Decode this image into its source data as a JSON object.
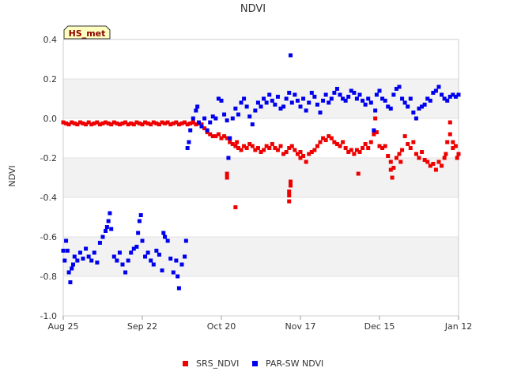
{
  "chart_data": {
    "type": "scatter",
    "title": "NDVI",
    "badge": "HS_met",
    "xlabel": "",
    "ylabel": "NDVI",
    "ylim": [
      -1.0,
      0.4
    ],
    "yticks": [
      -1.0,
      -0.8,
      -0.6,
      -0.4,
      -0.2,
      0.0,
      0.2,
      0.4
    ],
    "ytick_labels": [
      "-1.0",
      "-0.8",
      "-0.6",
      "-0.4",
      "-0.2",
      "0.0",
      "0.2",
      "0.4"
    ],
    "xlim_days": [
      0,
      140
    ],
    "xticks": [
      {
        "day": 0,
        "label": "Aug 25"
      },
      {
        "day": 28,
        "label": "Sep 22"
      },
      {
        "day": 56,
        "label": "Oct 20"
      },
      {
        "day": 84,
        "label": "Nov 17"
      },
      {
        "day": 112,
        "label": "Dec 15"
      },
      {
        "day": 140,
        "label": "Jan 12"
      }
    ],
    "grid_bands": true,
    "legend_position": "bottom-center",
    "series": [
      {
        "name": "SRS_NDVI",
        "color": "#ee0000",
        "points": [
          [
            0,
            -0.02
          ],
          [
            1,
            -0.025
          ],
          [
            2,
            -0.03
          ],
          [
            3,
            -0.02
          ],
          [
            4,
            -0.025
          ],
          [
            5,
            -0.03
          ],
          [
            6,
            -0.02
          ],
          [
            7,
            -0.025
          ],
          [
            8,
            -0.03
          ],
          [
            9,
            -0.02
          ],
          [
            10,
            -0.03
          ],
          [
            11,
            -0.025
          ],
          [
            12,
            -0.02
          ],
          [
            13,
            -0.03
          ],
          [
            14,
            -0.025
          ],
          [
            15,
            -0.02
          ],
          [
            16,
            -0.025
          ],
          [
            17,
            -0.03
          ],
          [
            18,
            -0.02
          ],
          [
            19,
            -0.025
          ],
          [
            20,
            -0.03
          ],
          [
            21,
            -0.025
          ],
          [
            22,
            -0.02
          ],
          [
            23,
            -0.03
          ],
          [
            24,
            -0.025
          ],
          [
            25,
            -0.03
          ],
          [
            26,
            -0.02
          ],
          [
            27,
            -0.025
          ],
          [
            28,
            -0.03
          ],
          [
            29,
            -0.02
          ],
          [
            30,
            -0.025
          ],
          [
            31,
            -0.03
          ],
          [
            32,
            -0.02
          ],
          [
            33,
            -0.025
          ],
          [
            34,
            -0.03
          ],
          [
            35,
            -0.02
          ],
          [
            36,
            -0.025
          ],
          [
            37,
            -0.02
          ],
          [
            38,
            -0.03
          ],
          [
            39,
            -0.025
          ],
          [
            40,
            -0.02
          ],
          [
            41,
            -0.03
          ],
          [
            42,
            -0.025
          ],
          [
            43,
            -0.02
          ],
          [
            44,
            -0.03
          ],
          [
            45,
            -0.025
          ],
          [
            46,
            -0.02
          ],
          [
            47,
            -0.03
          ],
          [
            48,
            -0.025
          ],
          [
            49,
            -0.03
          ],
          [
            50,
            -0.05
          ],
          [
            51,
            -0.07
          ],
          [
            52,
            -0.08
          ],
          [
            53,
            -0.09
          ],
          [
            54,
            -0.09
          ],
          [
            55,
            -0.08
          ],
          [
            56,
            -0.1
          ],
          [
            57,
            -0.09
          ],
          [
            58,
            -0.1
          ],
          [
            59,
            -0.12
          ],
          [
            60,
            -0.13
          ],
          [
            61,
            -0.14
          ],
          [
            61.5,
            -0.12
          ],
          [
            62,
            -0.15
          ],
          [
            63,
            -0.16
          ],
          [
            58,
            -0.28
          ],
          [
            58,
            -0.3
          ],
          [
            61,
            -0.45
          ],
          [
            64,
            -0.14
          ],
          [
            65,
            -0.15
          ],
          [
            66,
            -0.13
          ],
          [
            67,
            -0.14
          ],
          [
            68,
            -0.16
          ],
          [
            69,
            -0.15
          ],
          [
            70,
            -0.17
          ],
          [
            71,
            -0.16
          ],
          [
            72,
            -0.14
          ],
          [
            73,
            -0.15
          ],
          [
            74,
            -0.13
          ],
          [
            75,
            -0.15
          ],
          [
            76,
            -0.16
          ],
          [
            77,
            -0.14
          ],
          [
            78,
            -0.18
          ],
          [
            79,
            -0.17
          ],
          [
            80,
            -0.15
          ],
          [
            80.5,
            -0.32
          ],
          [
            80.5,
            -0.34
          ],
          [
            80,
            -0.37
          ],
          [
            80,
            -0.39
          ],
          [
            80,
            -0.42
          ],
          [
            81,
            -0.14
          ],
          [
            82,
            -0.16
          ],
          [
            83,
            -0.18
          ],
          [
            84,
            -0.17
          ],
          [
            84,
            -0.2
          ],
          [
            85,
            -0.19
          ],
          [
            86,
            -0.22
          ],
          [
            87,
            -0.18
          ],
          [
            88,
            -0.17
          ],
          [
            89,
            -0.16
          ],
          [
            90,
            -0.14
          ],
          [
            91,
            -0.12
          ],
          [
            92,
            -0.1
          ],
          [
            93,
            -0.11
          ],
          [
            94,
            -0.09
          ],
          [
            95,
            -0.1
          ],
          [
            96,
            -0.12
          ],
          [
            97,
            -0.13
          ],
          [
            98,
            -0.14
          ],
          [
            99,
            -0.12
          ],
          [
            100,
            -0.15
          ],
          [
            101,
            -0.17
          ],
          [
            102,
            -0.16
          ],
          [
            103,
            -0.18
          ],
          [
            104,
            -0.16
          ],
          [
            104.5,
            -0.28
          ],
          [
            105,
            -0.17
          ],
          [
            106,
            -0.15
          ],
          [
            107,
            -0.13
          ],
          [
            108,
            -0.15
          ],
          [
            109,
            -0.12
          ],
          [
            110,
            -0.08
          ],
          [
            110.5,
            0.0
          ],
          [
            111,
            -0.07
          ],
          [
            112,
            -0.14
          ],
          [
            113,
            -0.15
          ],
          [
            114,
            -0.14
          ],
          [
            115,
            -0.19
          ],
          [
            116,
            -0.22
          ],
          [
            116,
            -0.26
          ],
          [
            116.5,
            -0.3
          ],
          [
            117,
            -0.25
          ],
          [
            118,
            -0.2
          ],
          [
            119,
            -0.18
          ],
          [
            119.5,
            -0.22
          ],
          [
            120,
            -0.16
          ],
          [
            121,
            -0.09
          ],
          [
            122,
            -0.13
          ],
          [
            123,
            -0.15
          ],
          [
            124,
            -0.12
          ],
          [
            125,
            -0.18
          ],
          [
            126,
            -0.2
          ],
          [
            127,
            -0.17
          ],
          [
            128,
            -0.21
          ],
          [
            129,
            -0.22
          ],
          [
            130,
            -0.24
          ],
          [
            131,
            -0.23
          ],
          [
            132,
            -0.26
          ],
          [
            133,
            -0.22
          ],
          [
            134,
            -0.24
          ],
          [
            135,
            -0.2
          ],
          [
            135.5,
            -0.18
          ],
          [
            136,
            -0.12
          ],
          [
            137,
            -0.08
          ],
          [
            137,
            -0.02
          ],
          [
            138,
            -0.15
          ],
          [
            138,
            -0.12
          ],
          [
            139,
            -0.14
          ],
          [
            139.5,
            -0.2
          ],
          [
            140,
            -0.18
          ]
        ]
      },
      {
        "name": "PAR-SW NDVI",
        "color": "#0000ee",
        "points": [
          [
            0,
            -0.67
          ],
          [
            0.5,
            -0.72
          ],
          [
            1,
            -0.62
          ],
          [
            1.5,
            -0.67
          ],
          [
            2,
            -0.78
          ],
          [
            2.5,
            -0.83
          ],
          [
            3,
            -0.76
          ],
          [
            3.5,
            -0.74
          ],
          [
            4,
            -0.7
          ],
          [
            5,
            -0.72
          ],
          [
            6,
            -0.68
          ],
          [
            7,
            -0.71
          ],
          [
            8,
            -0.66
          ],
          [
            9,
            -0.7
          ],
          [
            10,
            -0.72
          ],
          [
            11,
            -0.68
          ],
          [
            12,
            -0.73
          ],
          [
            13,
            -0.63
          ],
          [
            14,
            -0.6
          ],
          [
            15,
            -0.57
          ],
          [
            15.5,
            -0.55
          ],
          [
            16,
            -0.52
          ],
          [
            16.5,
            -0.48
          ],
          [
            17,
            -0.56
          ],
          [
            18,
            -0.7
          ],
          [
            19,
            -0.72
          ],
          [
            20,
            -0.68
          ],
          [
            21,
            -0.74
          ],
          [
            22,
            -0.78
          ],
          [
            23,
            -0.72
          ],
          [
            24,
            -0.68
          ],
          [
            25,
            -0.66
          ],
          [
            26,
            -0.65
          ],
          [
            26.5,
            -0.58
          ],
          [
            27,
            -0.52
          ],
          [
            27.5,
            -0.49
          ],
          [
            28,
            -0.62
          ],
          [
            29,
            -0.7
          ],
          [
            30,
            -0.68
          ],
          [
            31,
            -0.72
          ],
          [
            32,
            -0.74
          ],
          [
            33,
            -0.67
          ],
          [
            34,
            -0.69
          ],
          [
            35,
            -0.77
          ],
          [
            35.5,
            -0.58
          ],
          [
            36,
            -0.6
          ],
          [
            37,
            -0.62
          ],
          [
            38,
            -0.71
          ],
          [
            39,
            -0.78
          ],
          [
            40,
            -0.72
          ],
          [
            40.5,
            -0.8
          ],
          [
            41,
            -0.86
          ],
          [
            42,
            -0.74
          ],
          [
            43,
            -0.7
          ],
          [
            43.5,
            -0.62
          ],
          [
            44,
            -0.15
          ],
          [
            44.5,
            -0.12
          ],
          [
            45,
            -0.06
          ],
          [
            46,
            0.0
          ],
          [
            47,
            0.04
          ],
          [
            47.5,
            0.06
          ],
          [
            48,
            -0.02
          ],
          [
            49,
            -0.04
          ],
          [
            50,
            0.0
          ],
          [
            51,
            -0.06
          ],
          [
            52,
            -0.02
          ],
          [
            53,
            0.01
          ],
          [
            54,
            0.0
          ],
          [
            55,
            0.1
          ],
          [
            56,
            0.09
          ],
          [
            57,
            0.02
          ],
          [
            58,
            -0.01
          ],
          [
            58.5,
            -0.2
          ],
          [
            59,
            -0.1
          ],
          [
            60,
            0.0
          ],
          [
            61,
            0.05
          ],
          [
            62,
            0.02
          ],
          [
            63,
            0.08
          ],
          [
            64,
            0.1
          ],
          [
            65,
            0.06
          ],
          [
            66,
            0.01
          ],
          [
            67,
            -0.03
          ],
          [
            68,
            0.04
          ],
          [
            69,
            0.08
          ],
          [
            70,
            0.06
          ],
          [
            71,
            0.1
          ],
          [
            72,
            0.08
          ],
          [
            73,
            0.12
          ],
          [
            74,
            0.09
          ],
          [
            75,
            0.07
          ],
          [
            76,
            0.11
          ],
          [
            77,
            0.05
          ],
          [
            78,
            0.06
          ],
          [
            79,
            0.1
          ],
          [
            80,
            0.13
          ],
          [
            80.5,
            0.32
          ],
          [
            81,
            0.08
          ],
          [
            82,
            0.12
          ],
          [
            83,
            0.09
          ],
          [
            84,
            0.06
          ],
          [
            85,
            0.1
          ],
          [
            86,
            0.04
          ],
          [
            87,
            0.08
          ],
          [
            88,
            0.13
          ],
          [
            89,
            0.11
          ],
          [
            90,
            0.07
          ],
          [
            91,
            0.03
          ],
          [
            92,
            0.09
          ],
          [
            93,
            0.12
          ],
          [
            94,
            0.08
          ],
          [
            95,
            0.1
          ],
          [
            96,
            0.13
          ],
          [
            97,
            0.15
          ],
          [
            98,
            0.12
          ],
          [
            99,
            0.1
          ],
          [
            100,
            0.09
          ],
          [
            101,
            0.11
          ],
          [
            102,
            0.14
          ],
          [
            103,
            0.13
          ],
          [
            104,
            0.1
          ],
          [
            105,
            0.12
          ],
          [
            106,
            0.09
          ],
          [
            107,
            0.07
          ],
          [
            108,
            0.1
          ],
          [
            109,
            0.08
          ],
          [
            110,
            -0.06
          ],
          [
            110.5,
            0.04
          ],
          [
            111,
            0.12
          ],
          [
            112,
            0.14
          ],
          [
            113,
            0.1
          ],
          [
            114,
            0.09
          ],
          [
            115,
            0.06
          ],
          [
            116,
            0.05
          ],
          [
            117,
            0.12
          ],
          [
            118,
            0.15
          ],
          [
            119,
            0.16
          ],
          [
            120,
            0.1
          ],
          [
            121,
            0.08
          ],
          [
            122,
            0.06
          ],
          [
            123,
            0.1
          ],
          [
            124,
            0.03
          ],
          [
            125,
            0.0
          ],
          [
            126,
            0.05
          ],
          [
            127,
            0.06
          ],
          [
            128,
            0.07
          ],
          [
            129,
            0.1
          ],
          [
            130,
            0.09
          ],
          [
            131,
            0.13
          ],
          [
            132,
            0.14
          ],
          [
            133,
            0.16
          ],
          [
            134,
            0.12
          ],
          [
            135,
            0.1
          ],
          [
            136,
            0.09
          ],
          [
            137,
            0.11
          ],
          [
            138,
            0.12
          ],
          [
            139,
            0.11
          ],
          [
            140,
            0.12
          ]
        ]
      }
    ]
  }
}
